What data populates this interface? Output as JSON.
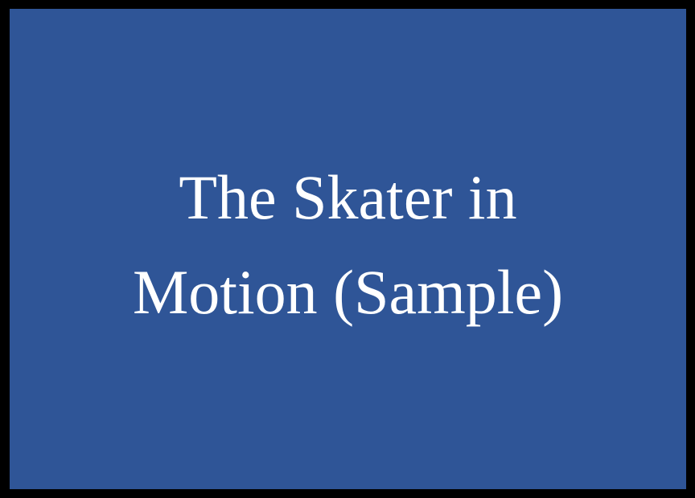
{
  "slide": {
    "background_color": "#2f5597",
    "border_color": "#000000",
    "text_color": "#ffffff",
    "title_lines": [
      "The Skater in",
      "Motion (Sample)"
    ]
  }
}
